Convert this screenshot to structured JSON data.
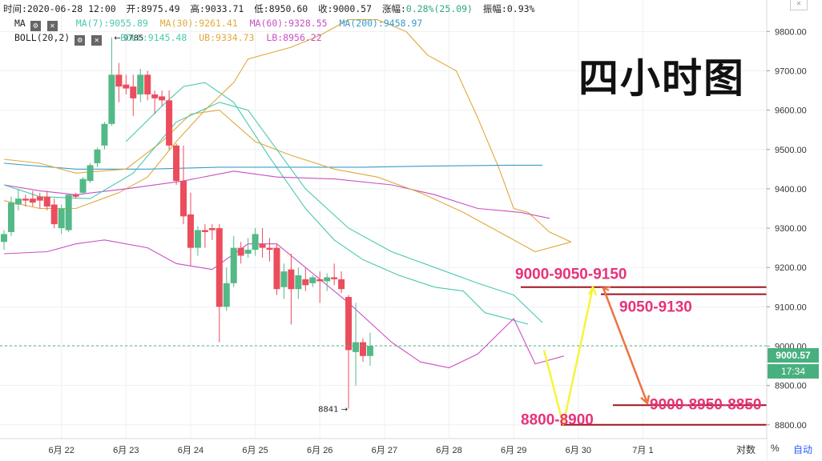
{
  "header": {
    "time_label": "时间:2020-06-28 12:00",
    "open_label": "开:8975.49",
    "high_label": "高:9033.71",
    "low_label": "低:8950.60",
    "close_label": "收:9000.57",
    "change_label": "涨幅:",
    "change_value": "0.28%(25.09)",
    "amplitude_label": "振幅:0.93%"
  },
  "indicators": {
    "ma_name": "MA",
    "ma7": "MA(7):9055.89",
    "ma30": "MA(30):9261.41",
    "ma60": "MA(60):9328.55",
    "ma200": "MA(200):9458.97",
    "boll_name": "BOLL(20,2)",
    "boll": "BOLL:9145.48",
    "ub": "UB:9334.73",
    "lb": "LB:8956.22",
    "gear_icon": "⚙",
    "close_icon": "✕"
  },
  "title_overlay": "四小时图",
  "current_price": "9000.57",
  "countdown": "17:34",
  "high_marker": "← 9785",
  "low_marker": "8841 →",
  "bottom_controls": {
    "log_label": "对数",
    "percent_label": "%",
    "auto_label": "自动"
  },
  "window_close": "✕",
  "colors": {
    "up": "#53b987",
    "down": "#eb4d5c",
    "ma7": "#49c9b0",
    "ma30": "#e0a93b",
    "ma60": "#c94fc4",
    "ma200": "#3a9bc8",
    "annot": "#e8327a",
    "level": "#a0141e"
  },
  "annotations": [
    {
      "text": "9000-9050-9150",
      "price": 9185
    },
    {
      "text": "9050-9130",
      "price": 9102
    },
    {
      "text": "9000-8950-8850",
      "price": 8853
    },
    {
      "text": "8800-8900",
      "price": 8815
    }
  ],
  "chart_data": {
    "type": "candlestick",
    "title": "四小时图",
    "ylim": [
      8765,
      9880
    ],
    "y_ticks": [
      8800,
      8900,
      9000,
      9100,
      9200,
      9300,
      9400,
      9500,
      9600,
      9700,
      9800
    ],
    "y_tick_labels": [
      "8800.00",
      "8900.00",
      "9000.00",
      "9100.00",
      "9200.00",
      "9300.00",
      "9400.00",
      "9500.00",
      "9600.00",
      "9700.00",
      "9800.00"
    ],
    "x_ticks": [
      {
        "label": "6月 22",
        "bar": 8
      },
      {
        "label": "6月 23",
        "bar": 17
      },
      {
        "label": "6月 24",
        "bar": 26
      },
      {
        "label": "6月 25",
        "bar": 35
      },
      {
        "label": "6月 26",
        "bar": 44
      },
      {
        "label": "6月 27",
        "bar": 53
      },
      {
        "label": "6月 28",
        "bar": 62
      },
      {
        "label": "6月 29",
        "bar": 71
      },
      {
        "label": "6月 30",
        "bar": 80
      },
      {
        "label": "7月 1",
        "bar": 89
      }
    ],
    "candles": [
      {
        "o": 9265,
        "h": 9295,
        "l": 9245,
        "c": 9285
      },
      {
        "o": 9290,
        "h": 9380,
        "l": 9280,
        "c": 9365
      },
      {
        "o": 9360,
        "h": 9400,
        "l": 9345,
        "c": 9375
      },
      {
        "o": 9375,
        "h": 9385,
        "l": 9355,
        "c": 9370
      },
      {
        "o": 9375,
        "h": 9395,
        "l": 9355,
        "c": 9365
      },
      {
        "o": 9380,
        "h": 9390,
        "l": 9350,
        "c": 9370
      },
      {
        "o": 9380,
        "h": 9395,
        "l": 9345,
        "c": 9355
      },
      {
        "o": 9360,
        "h": 9375,
        "l": 9300,
        "c": 9310
      },
      {
        "o": 9300,
        "h": 9360,
        "l": 9285,
        "c": 9350
      },
      {
        "o": 9295,
        "h": 9385,
        "l": 9290,
        "c": 9385
      },
      {
        "o": 9385,
        "h": 9390,
        "l": 9375,
        "c": 9380
      },
      {
        "o": 9390,
        "h": 9430,
        "l": 9385,
        "c": 9425
      },
      {
        "o": 9420,
        "h": 9465,
        "l": 9415,
        "c": 9460
      },
      {
        "o": 9465,
        "h": 9505,
        "l": 9455,
        "c": 9500
      },
      {
        "o": 9510,
        "h": 9570,
        "l": 9500,
        "c": 9565
      },
      {
        "o": 9565,
        "h": 9785,
        "l": 9560,
        "c": 9690
      },
      {
        "o": 9690,
        "h": 9720,
        "l": 9620,
        "c": 9660
      },
      {
        "o": 9665,
        "h": 9690,
        "l": 9640,
        "c": 9655
      },
      {
        "o": 9660,
        "h": 9690,
        "l": 9585,
        "c": 9630
      },
      {
        "o": 9640,
        "h": 9705,
        "l": 9620,
        "c": 9690
      },
      {
        "o": 9690,
        "h": 9700,
        "l": 9625,
        "c": 9640
      },
      {
        "o": 9640,
        "h": 9650,
        "l": 9590,
        "c": 9630
      },
      {
        "o": 9635,
        "h": 9650,
        "l": 9610,
        "c": 9625
      },
      {
        "o": 9625,
        "h": 9650,
        "l": 9500,
        "c": 9510
      },
      {
        "o": 9510,
        "h": 9515,
        "l": 9410,
        "c": 9420
      },
      {
        "o": 9420,
        "h": 9510,
        "l": 9310,
        "c": 9330
      },
      {
        "o": 9335,
        "h": 9390,
        "l": 9205,
        "c": 9250
      },
      {
        "o": 9250,
        "h": 9305,
        "l": 9230,
        "c": 9295
      },
      {
        "o": 9295,
        "h": 9310,
        "l": 9250,
        "c": 9290
      },
      {
        "o": 9300,
        "h": 9310,
        "l": 9270,
        "c": 9295
      },
      {
        "o": 9300,
        "h": 9310,
        "l": 9010,
        "c": 9100
      },
      {
        "o": 9100,
        "h": 9200,
        "l": 9090,
        "c": 9160
      },
      {
        "o": 9160,
        "h": 9280,
        "l": 9150,
        "c": 9250
      },
      {
        "o": 9250,
        "h": 9265,
        "l": 9210,
        "c": 9230
      },
      {
        "o": 9235,
        "h": 9275,
        "l": 9225,
        "c": 9245
      },
      {
        "o": 9245,
        "h": 9300,
        "l": 9230,
        "c": 9285
      },
      {
        "o": 9260,
        "h": 9300,
        "l": 9225,
        "c": 9250
      },
      {
        "o": 9250,
        "h": 9275,
        "l": 9215,
        "c": 9245
      },
      {
        "o": 9250,
        "h": 9260,
        "l": 9130,
        "c": 9145
      },
      {
        "o": 9150,
        "h": 9210,
        "l": 9120,
        "c": 9190
      },
      {
        "o": 9195,
        "h": 9235,
        "l": 9055,
        "c": 9145
      },
      {
        "o": 9145,
        "h": 9200,
        "l": 9120,
        "c": 9180
      },
      {
        "o": 9170,
        "h": 9200,
        "l": 9140,
        "c": 9155
      },
      {
        "o": 9160,
        "h": 9180,
        "l": 9150,
        "c": 9175
      },
      {
        "o": 9170,
        "h": 9190,
        "l": 9110,
        "c": 9165
      },
      {
        "o": 9165,
        "h": 9185,
        "l": 9140,
        "c": 9175
      },
      {
        "o": 9175,
        "h": 9210,
        "l": 9155,
        "c": 9170
      },
      {
        "o": 9170,
        "h": 9190,
        "l": 9135,
        "c": 9145
      },
      {
        "o": 9125,
        "h": 9130,
        "l": 8841,
        "c": 8990
      },
      {
        "o": 8985,
        "h": 9110,
        "l": 8900,
        "c": 9010
      },
      {
        "o": 9010,
        "h": 9020,
        "l": 8960,
        "c": 8975
      },
      {
        "o": 8975,
        "h": 9034,
        "l": 8950,
        "c": 9001
      }
    ],
    "series": [
      {
        "name": "MA(7)",
        "points": [
          [
            17,
            9520
          ],
          [
            22,
            9610
          ],
          [
            25,
            9660
          ],
          [
            28,
            9670
          ],
          [
            32,
            9620
          ],
          [
            37,
            9480
          ],
          [
            42,
            9350
          ],
          [
            46,
            9270
          ],
          [
            50,
            9220
          ],
          [
            55,
            9180
          ],
          [
            60,
            9150
          ],
          [
            64,
            9140
          ],
          [
            67,
            9085
          ],
          [
            73,
            9056
          ]
        ]
      },
      {
        "name": "MA(30)",
        "points": [
          [
            0,
            9370
          ],
          [
            5,
            9350
          ],
          [
            10,
            9350
          ],
          [
            16,
            9390
          ],
          [
            20,
            9430
          ],
          [
            24,
            9520
          ],
          [
            28,
            9600
          ],
          [
            32,
            9670
          ],
          [
            34,
            9730
          ],
          [
            40,
            9760
          ],
          [
            44,
            9790
          ],
          [
            48,
            9830
          ],
          [
            52,
            9830
          ],
          [
            56,
            9800
          ],
          [
            59,
            9740
          ],
          [
            63,
            9700
          ],
          [
            66,
            9580
          ],
          [
            69,
            9450
          ],
          [
            71,
            9350
          ],
          [
            73,
            9340
          ],
          [
            76,
            9290
          ],
          [
            79,
            9265
          ]
        ]
      },
      {
        "name": "MA(60)",
        "points": [
          [
            0,
            9410
          ],
          [
            5,
            9395
          ],
          [
            10,
            9385
          ],
          [
            17,
            9400
          ],
          [
            25,
            9420
          ],
          [
            32,
            9445
          ],
          [
            38,
            9430
          ],
          [
            46,
            9425
          ],
          [
            54,
            9410
          ],
          [
            60,
            9385
          ],
          [
            66,
            9350
          ],
          [
            72,
            9340
          ],
          [
            76,
            9325
          ]
        ]
      },
      {
        "name": "MA(200)",
        "points": [
          [
            0,
            9465
          ],
          [
            10,
            9450
          ],
          [
            20,
            9450
          ],
          [
            30,
            9455
          ],
          [
            40,
            9455
          ],
          [
            50,
            9455
          ],
          [
            60,
            9458
          ],
          [
            70,
            9460
          ],
          [
            75,
            9460
          ]
        ]
      },
      {
        "name": "UB",
        "points": [
          [
            0,
            9475
          ],
          [
            5,
            9465
          ],
          [
            10,
            9440
          ],
          [
            17,
            9450
          ],
          [
            22,
            9520
          ],
          [
            26,
            9590
          ],
          [
            30,
            9600
          ],
          [
            35,
            9520
          ],
          [
            40,
            9485
          ],
          [
            46,
            9450
          ],
          [
            52,
            9430
          ],
          [
            58,
            9390
          ],
          [
            64,
            9340
          ],
          [
            70,
            9280
          ],
          [
            74,
            9240
          ],
          [
            79,
            9265
          ]
        ]
      },
      {
        "name": "BOLL",
        "points": [
          [
            0,
            9410
          ],
          [
            5,
            9380
          ],
          [
            12,
            9375
          ],
          [
            18,
            9440
          ],
          [
            24,
            9570
          ],
          [
            30,
            9620
          ],
          [
            34,
            9600
          ],
          [
            38,
            9500
          ],
          [
            42,
            9400
          ],
          [
            48,
            9300
          ],
          [
            54,
            9240
          ],
          [
            60,
            9200
          ],
          [
            66,
            9160
          ],
          [
            71,
            9130
          ],
          [
            75,
            9060
          ]
        ]
      },
      {
        "name": "LB",
        "points": [
          [
            0,
            9235
          ],
          [
            6,
            9240
          ],
          [
            10,
            9260
          ],
          [
            14,
            9270
          ],
          [
            20,
            9250
          ],
          [
            24,
            9210
          ],
          [
            29,
            9195
          ],
          [
            34,
            9260
          ],
          [
            38,
            9260
          ],
          [
            42,
            9200
          ],
          [
            48,
            9110
          ],
          [
            54,
            9010
          ],
          [
            58,
            8960
          ],
          [
            62,
            8945
          ],
          [
            66,
            8980
          ],
          [
            71,
            9070
          ],
          [
            74,
            8955
          ],
          [
            78,
            8975
          ]
        ]
      }
    ]
  }
}
